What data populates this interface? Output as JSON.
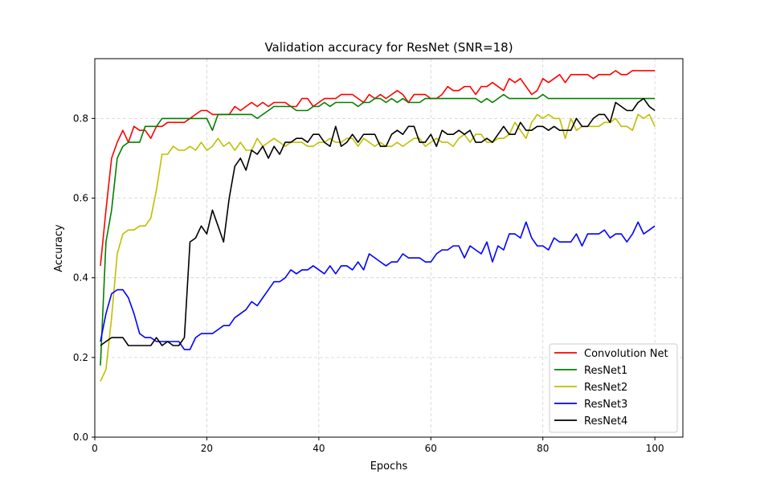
{
  "chart_data": {
    "type": "line",
    "title": "Validation accuracy for ResNet (SNR=18)",
    "xlabel": "Epochs",
    "ylabel": "Accuracy",
    "xlim": [
      0,
      105
    ],
    "ylim": [
      0.0,
      0.95
    ],
    "xticks": [
      "0",
      "20",
      "40",
      "60",
      "80",
      "100"
    ],
    "yticks": [
      "0.0",
      "0.2",
      "0.4",
      "0.6",
      "0.8"
    ],
    "grid": true,
    "legend_position": "lower-right",
    "series": [
      {
        "name": "Convolution Net",
        "color": "#ff0000",
        "values": [
          0.43,
          0.57,
          0.7,
          0.74,
          0.77,
          0.74,
          0.78,
          0.77,
          0.77,
          0.75,
          0.78,
          0.78,
          0.79,
          0.79,
          0.79,
          0.79,
          0.8,
          0.81,
          0.82,
          0.82,
          0.81,
          0.81,
          0.81,
          0.81,
          0.83,
          0.82,
          0.83,
          0.84,
          0.83,
          0.84,
          0.83,
          0.84,
          0.84,
          0.84,
          0.83,
          0.83,
          0.85,
          0.85,
          0.83,
          0.84,
          0.85,
          0.85,
          0.85,
          0.86,
          0.86,
          0.86,
          0.85,
          0.84,
          0.86,
          0.85,
          0.86,
          0.85,
          0.86,
          0.87,
          0.86,
          0.84,
          0.86,
          0.86,
          0.86,
          0.85,
          0.85,
          0.86,
          0.88,
          0.87,
          0.87,
          0.88,
          0.88,
          0.86,
          0.88,
          0.88,
          0.89,
          0.88,
          0.87,
          0.9,
          0.89,
          0.9,
          0.88,
          0.86,
          0.87,
          0.9,
          0.89,
          0.9,
          0.91,
          0.89,
          0.91,
          0.91,
          0.91,
          0.91,
          0.9,
          0.91,
          0.91,
          0.91,
          0.92,
          0.91,
          0.91,
          0.92,
          0.92,
          0.92,
          0.92,
          0.92
        ]
      },
      {
        "name": "ResNet1",
        "color": "#008000",
        "values": [
          0.18,
          0.49,
          0.57,
          0.7,
          0.73,
          0.74,
          0.74,
          0.74,
          0.78,
          0.78,
          0.78,
          0.8,
          0.8,
          0.8,
          0.8,
          0.8,
          0.8,
          0.8,
          0.8,
          0.8,
          0.77,
          0.81,
          0.81,
          0.81,
          0.81,
          0.81,
          0.81,
          0.81,
          0.8,
          0.81,
          0.82,
          0.83,
          0.83,
          0.83,
          0.83,
          0.82,
          0.82,
          0.82,
          0.83,
          0.83,
          0.84,
          0.83,
          0.84,
          0.84,
          0.84,
          0.84,
          0.83,
          0.84,
          0.84,
          0.85,
          0.85,
          0.84,
          0.85,
          0.84,
          0.85,
          0.84,
          0.84,
          0.84,
          0.85,
          0.85,
          0.85,
          0.85,
          0.85,
          0.85,
          0.85,
          0.85,
          0.85,
          0.85,
          0.84,
          0.85,
          0.84,
          0.85,
          0.86,
          0.85,
          0.85,
          0.85,
          0.85,
          0.85,
          0.85,
          0.86,
          0.85,
          0.85,
          0.85,
          0.85,
          0.85,
          0.85,
          0.85,
          0.85,
          0.85,
          0.85,
          0.85,
          0.85,
          0.85,
          0.85,
          0.85,
          0.85,
          0.85,
          0.85,
          0.85,
          0.85
        ]
      },
      {
        "name": "ResNet2",
        "color": "#bfbf00",
        "values": [
          0.14,
          0.17,
          0.3,
          0.46,
          0.51,
          0.52,
          0.52,
          0.53,
          0.53,
          0.55,
          0.62,
          0.71,
          0.71,
          0.73,
          0.72,
          0.72,
          0.73,
          0.72,
          0.74,
          0.72,
          0.73,
          0.75,
          0.73,
          0.74,
          0.72,
          0.74,
          0.72,
          0.72,
          0.75,
          0.73,
          0.74,
          0.75,
          0.74,
          0.73,
          0.74,
          0.74,
          0.74,
          0.73,
          0.73,
          0.74,
          0.74,
          0.75,
          0.74,
          0.74,
          0.75,
          0.75,
          0.73,
          0.75,
          0.74,
          0.73,
          0.74,
          0.73,
          0.73,
          0.74,
          0.73,
          0.74,
          0.75,
          0.75,
          0.73,
          0.74,
          0.75,
          0.74,
          0.74,
          0.73,
          0.75,
          0.76,
          0.74,
          0.76,
          0.76,
          0.74,
          0.74,
          0.75,
          0.75,
          0.76,
          0.79,
          0.77,
          0.75,
          0.79,
          0.81,
          0.8,
          0.81,
          0.8,
          0.8,
          0.75,
          0.8,
          0.77,
          0.78,
          0.78,
          0.78,
          0.78,
          0.79,
          0.79,
          0.8,
          0.78,
          0.78,
          0.77,
          0.81,
          0.8,
          0.81,
          0.78
        ]
      },
      {
        "name": "ResNet3",
        "color": "#0000ff",
        "values": [
          0.24,
          0.31,
          0.36,
          0.37,
          0.37,
          0.35,
          0.31,
          0.26,
          0.25,
          0.25,
          0.24,
          0.24,
          0.24,
          0.24,
          0.24,
          0.22,
          0.22,
          0.25,
          0.26,
          0.26,
          0.26,
          0.27,
          0.28,
          0.28,
          0.3,
          0.31,
          0.32,
          0.34,
          0.33,
          0.35,
          0.37,
          0.39,
          0.39,
          0.4,
          0.42,
          0.41,
          0.42,
          0.42,
          0.43,
          0.42,
          0.41,
          0.43,
          0.41,
          0.43,
          0.43,
          0.42,
          0.44,
          0.42,
          0.46,
          0.45,
          0.44,
          0.43,
          0.44,
          0.44,
          0.46,
          0.45,
          0.45,
          0.45,
          0.44,
          0.44,
          0.46,
          0.47,
          0.47,
          0.48,
          0.48,
          0.45,
          0.48,
          0.47,
          0.46,
          0.49,
          0.44,
          0.48,
          0.47,
          0.51,
          0.51,
          0.5,
          0.54,
          0.5,
          0.48,
          0.48,
          0.47,
          0.5,
          0.49,
          0.49,
          0.49,
          0.51,
          0.48,
          0.51,
          0.51,
          0.51,
          0.52,
          0.5,
          0.51,
          0.51,
          0.49,
          0.51,
          0.54,
          0.51,
          0.52,
          0.53
        ]
      },
      {
        "name": "ResNet4",
        "color": "#000000",
        "values": [
          0.23,
          0.24,
          0.25,
          0.25,
          0.25,
          0.23,
          0.23,
          0.23,
          0.23,
          0.23,
          0.25,
          0.23,
          0.24,
          0.23,
          0.23,
          0.25,
          0.49,
          0.5,
          0.53,
          0.51,
          0.57,
          0.53,
          0.49,
          0.6,
          0.68,
          0.7,
          0.67,
          0.72,
          0.71,
          0.73,
          0.7,
          0.73,
          0.71,
          0.74,
          0.74,
          0.75,
          0.75,
          0.74,
          0.76,
          0.76,
          0.74,
          0.73,
          0.78,
          0.73,
          0.74,
          0.76,
          0.74,
          0.76,
          0.76,
          0.76,
          0.73,
          0.73,
          0.76,
          0.77,
          0.76,
          0.78,
          0.78,
          0.74,
          0.74,
          0.76,
          0.73,
          0.77,
          0.76,
          0.76,
          0.77,
          0.76,
          0.77,
          0.74,
          0.74,
          0.75,
          0.74,
          0.76,
          0.78,
          0.76,
          0.76,
          0.79,
          0.77,
          0.77,
          0.78,
          0.78,
          0.77,
          0.78,
          0.77,
          0.77,
          0.77,
          0.8,
          0.78,
          0.78,
          0.8,
          0.81,
          0.81,
          0.79,
          0.84,
          0.83,
          0.82,
          0.82,
          0.84,
          0.85,
          0.83,
          0.82
        ]
      }
    ]
  }
}
